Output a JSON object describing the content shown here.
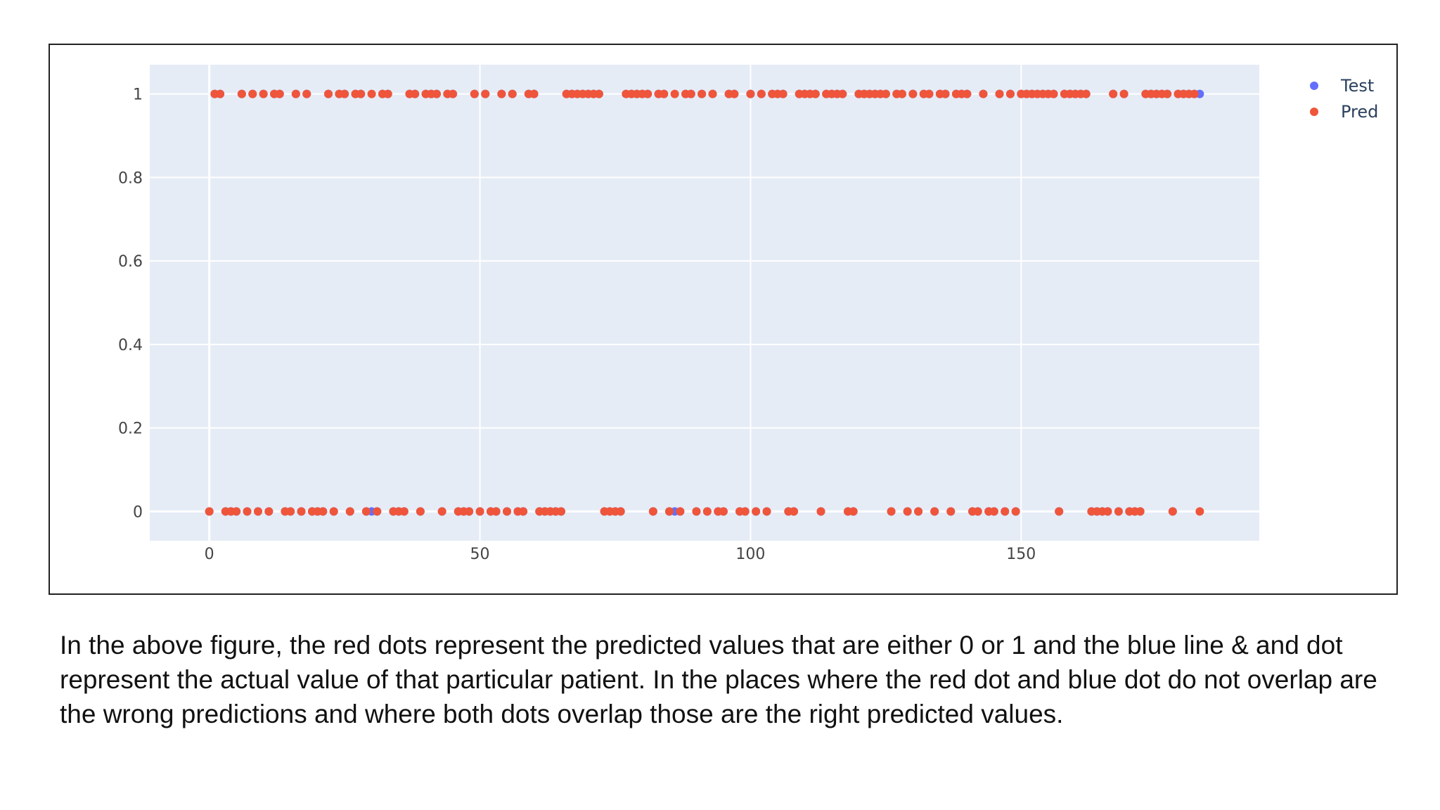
{
  "caption": "In the above figure, the red dots represent the predicted values that are either 0 or 1 and the blue line & and dot represent the actual value of that particular patient. In the places where the red dot and blue dot do not overlap are the wrong predictions and where both dots overlap those are the right predicted values.",
  "chart_data": {
    "type": "scatter",
    "title": "",
    "xlabel": "",
    "ylabel": "",
    "xlim": [
      -11,
      194
    ],
    "ylim": [
      -0.07,
      1.07
    ],
    "xticks": [
      "0",
      "50",
      "100",
      "150"
    ],
    "xtick_values": [
      0,
      50,
      100,
      150
    ],
    "yticks": [
      "0",
      "0.2",
      "0.4",
      "0.6",
      "0.8",
      "1"
    ],
    "ytick_values": [
      0,
      0.2,
      0.4,
      0.6,
      0.8,
      1
    ],
    "grid": true,
    "legend": "top-right",
    "colors": {
      "Test": "#636efa",
      "Pred": "#ef553b",
      "plot_bg": "#e5ecf6",
      "grid": "#ffffff"
    },
    "series": [
      {
        "name": "Test",
        "x": [
          0,
          1,
          2,
          3,
          4,
          5,
          6,
          7,
          8,
          9,
          10,
          11,
          12,
          13,
          14,
          15,
          16,
          17,
          18,
          19,
          20,
          21,
          22,
          23,
          24,
          25,
          26,
          27,
          28,
          29,
          30,
          31,
          32,
          33,
          34,
          35,
          36,
          37,
          38,
          39,
          40,
          41,
          42,
          43,
          44,
          45,
          46,
          47,
          48,
          49,
          50,
          51,
          52,
          53,
          54,
          55,
          56,
          57,
          58,
          59,
          60,
          61,
          62,
          63,
          64,
          65,
          66,
          67,
          68,
          69,
          70,
          71,
          72,
          73,
          74,
          75,
          76,
          77,
          78,
          79,
          80,
          81,
          82,
          83,
          84,
          85,
          86,
          87,
          88,
          89,
          90,
          91,
          92,
          93,
          94,
          95,
          96,
          97,
          98,
          99,
          100,
          101,
          102,
          103,
          104,
          105,
          106,
          107,
          108,
          109,
          110,
          111,
          112,
          113,
          114,
          115,
          116,
          117,
          118,
          119,
          120,
          121,
          122,
          123,
          124,
          125,
          126,
          127,
          128,
          129,
          130,
          131,
          132,
          133,
          134,
          135,
          136,
          137,
          138,
          139,
          140,
          141,
          142,
          143,
          144,
          145,
          146,
          147,
          148,
          149,
          150,
          151,
          152,
          153,
          154,
          155,
          156,
          157,
          158,
          159,
          160,
          161,
          162,
          163,
          164,
          165,
          166,
          167,
          168,
          169,
          170,
          171,
          172,
          173,
          174,
          175,
          176,
          177,
          178,
          179,
          180,
          181,
          182,
          183
        ],
        "y": [
          0,
          1,
          1,
          0,
          0,
          0,
          1,
          0,
          1,
          0,
          1,
          0,
          1,
          1,
          0,
          0,
          1,
          0,
          1,
          0,
          0,
          0,
          1,
          0,
          1,
          1,
          0,
          1,
          1,
          0,
          0,
          0,
          1,
          1,
          0,
          0,
          0,
          1,
          1,
          0,
          1,
          1,
          1,
          0,
          1,
          1,
          0,
          0,
          0,
          1,
          0,
          1,
          0,
          0,
          1,
          0,
          1,
          0,
          0,
          1,
          1,
          0,
          0,
          0,
          0,
          0,
          1,
          1,
          1,
          1,
          1,
          1,
          1,
          0,
          0,
          0,
          0,
          1,
          1,
          1,
          1,
          1,
          0,
          1,
          1,
          0,
          0,
          0,
          1,
          1,
          0,
          1,
          0,
          1,
          0,
          0,
          1,
          1,
          0,
          0,
          1,
          0,
          1,
          0,
          1,
          1,
          1,
          0,
          0,
          1,
          1,
          1,
          1,
          0,
          1,
          1,
          1,
          1,
          0,
          0,
          1,
          1,
          1,
          1,
          1,
          1,
          0,
          1,
          1,
          0,
          1,
          0,
          1,
          1,
          0,
          1,
          1,
          0,
          1,
          1,
          1,
          0,
          0,
          1,
          0,
          0,
          1,
          0,
          1,
          0,
          1,
          1,
          1,
          1,
          1,
          1,
          1,
          0,
          1,
          1,
          1,
          1,
          1,
          0,
          0,
          0,
          0,
          1,
          0,
          1,
          0,
          0,
          0,
          1,
          1,
          1,
          1,
          1,
          0,
          1,
          1,
          1,
          1,
          1
        ],
        "note_hidden": ""
      },
      {
        "name": "Pred",
        "x": [
          0,
          1,
          2,
          3,
          4,
          5,
          6,
          7,
          8,
          9,
          10,
          11,
          12,
          13,
          14,
          15,
          16,
          17,
          18,
          19,
          20,
          21,
          22,
          23,
          24,
          25,
          26,
          27,
          28,
          29,
          30,
          31,
          32,
          33,
          34,
          35,
          36,
          37,
          38,
          39,
          40,
          41,
          42,
          43,
          44,
          45,
          46,
          47,
          48,
          49,
          50,
          51,
          52,
          53,
          54,
          55,
          56,
          57,
          58,
          59,
          60,
          61,
          62,
          63,
          64,
          65,
          66,
          67,
          68,
          69,
          70,
          71,
          72,
          73,
          74,
          75,
          76,
          77,
          78,
          79,
          80,
          81,
          82,
          83,
          84,
          85,
          86,
          87,
          88,
          89,
          90,
          91,
          92,
          93,
          94,
          95,
          96,
          97,
          98,
          99,
          100,
          101,
          102,
          103,
          104,
          105,
          106,
          107,
          108,
          109,
          110,
          111,
          112,
          113,
          114,
          115,
          116,
          117,
          118,
          119,
          120,
          121,
          122,
          123,
          124,
          125,
          126,
          127,
          128,
          129,
          130,
          131,
          132,
          133,
          134,
          135,
          136,
          137,
          138,
          139,
          140,
          141,
          142,
          143,
          144,
          145,
          146,
          147,
          148,
          149,
          150,
          151,
          152,
          153,
          154,
          155,
          156,
          157,
          158,
          159,
          160,
          161,
          162,
          163,
          164,
          165,
          166,
          167,
          168,
          169,
          170,
          171,
          172,
          173,
          174,
          175,
          176,
          177,
          178,
          179,
          180,
          181,
          182,
          183
        ],
        "y": [
          0,
          1,
          1,
          0,
          0,
          0,
          1,
          0,
          1,
          0,
          1,
          0,
          1,
          1,
          0,
          0,
          1,
          0,
          1,
          0,
          0,
          0,
          1,
          0,
          1,
          1,
          0,
          1,
          1,
          0,
          1,
          0,
          1,
          1,
          0,
          0,
          0,
          1,
          1,
          0,
          1,
          1,
          1,
          0,
          1,
          1,
          0,
          0,
          0,
          1,
          0,
          1,
          0,
          0,
          1,
          0,
          1,
          0,
          0,
          1,
          1,
          0,
          0,
          0,
          0,
          0,
          1,
          1,
          1,
          1,
          1,
          1,
          1,
          0,
          0,
          0,
          0,
          1,
          1,
          1,
          1,
          1,
          0,
          1,
          1,
          0,
          1,
          0,
          1,
          1,
          0,
          1,
          0,
          1,
          0,
          0,
          1,
          1,
          0,
          0,
          1,
          0,
          1,
          0,
          1,
          1,
          1,
          0,
          0,
          1,
          1,
          1,
          1,
          0,
          1,
          1,
          1,
          1,
          0,
          0,
          1,
          1,
          1,
          1,
          1,
          1,
          0,
          1,
          1,
          0,
          1,
          0,
          1,
          1,
          0,
          1,
          1,
          0,
          1,
          1,
          1,
          0,
          0,
          1,
          0,
          0,
          1,
          0,
          1,
          0,
          1,
          1,
          1,
          1,
          1,
          1,
          1,
          0,
          1,
          1,
          1,
          1,
          1,
          0,
          0,
          0,
          0,
          1,
          0,
          1,
          0,
          0,
          0,
          1,
          1,
          1,
          1,
          1,
          0,
          1,
          1,
          1,
          1,
          0
        ]
      }
    ]
  }
}
